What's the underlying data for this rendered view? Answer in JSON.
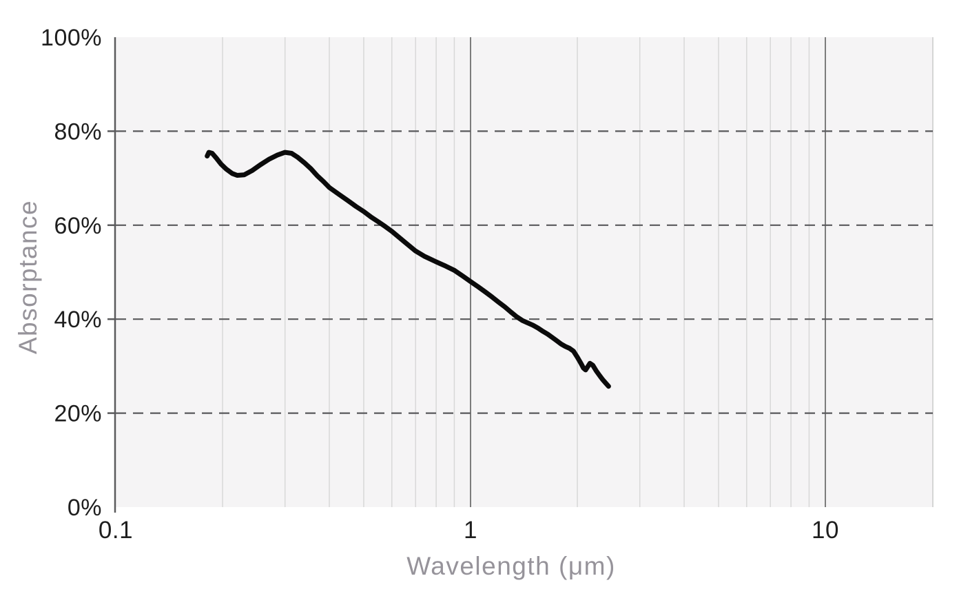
{
  "chart": {
    "x_axis_title": "Wavelength (μm)",
    "y_axis_title": "Absorptance"
  },
  "chart_data": {
    "type": "line",
    "title": "",
    "xlabel": "Wavelength (μm)",
    "ylabel": "Absorptance",
    "x_scale": "log",
    "xlim": [
      0.1,
      20
    ],
    "ylim": [
      0,
      100
    ],
    "y_unit": "percent",
    "legend": "none",
    "grid": {
      "x_minor": [
        0.2,
        0.3,
        0.4,
        0.5,
        0.6,
        0.7,
        0.8,
        0.9,
        2,
        3,
        4,
        5,
        6,
        7,
        8,
        9
      ],
      "x_major": [
        1,
        10
      ],
      "y_dashed": [
        20,
        40,
        60,
        80
      ]
    },
    "x_ticks": [
      {
        "value": 0.1,
        "label": "0.1"
      },
      {
        "value": 1,
        "label": "1"
      },
      {
        "value": 10,
        "label": "10"
      }
    ],
    "y_ticks": [
      {
        "value": 0,
        "label": "0%"
      },
      {
        "value": 20,
        "label": "20%"
      },
      {
        "value": 40,
        "label": "40%"
      },
      {
        "value": 60,
        "label": "60%"
      },
      {
        "value": 80,
        "label": "80%"
      },
      {
        "value": 100,
        "label": "100%"
      }
    ],
    "series": [
      {
        "name": "Absorptance",
        "color": "#0b0b0b",
        "points": [
          [
            0.181,
            74.7
          ],
          [
            0.183,
            75.5
          ],
          [
            0.187,
            75.3
          ],
          [
            0.192,
            74.3
          ],
          [
            0.198,
            73.0
          ],
          [
            0.205,
            71.9
          ],
          [
            0.213,
            71.0
          ],
          [
            0.22,
            70.6
          ],
          [
            0.23,
            70.7
          ],
          [
            0.242,
            71.6
          ],
          [
            0.255,
            72.8
          ],
          [
            0.27,
            74.0
          ],
          [
            0.285,
            74.9
          ],
          [
            0.3,
            75.5
          ],
          [
            0.313,
            75.3
          ],
          [
            0.325,
            74.5
          ],
          [
            0.34,
            73.3
          ],
          [
            0.355,
            72.0
          ],
          [
            0.37,
            70.5
          ],
          [
            0.385,
            69.3
          ],
          [
            0.4,
            68.0
          ],
          [
            0.425,
            66.6
          ],
          [
            0.45,
            65.3
          ],
          [
            0.475,
            64.0
          ],
          [
            0.5,
            62.9
          ],
          [
            0.525,
            61.7
          ],
          [
            0.55,
            60.7
          ],
          [
            0.575,
            59.7
          ],
          [
            0.6,
            58.7
          ],
          [
            0.65,
            56.5
          ],
          [
            0.7,
            54.5
          ],
          [
            0.74,
            53.4
          ],
          [
            0.77,
            52.8
          ],
          [
            0.8,
            52.2
          ],
          [
            0.85,
            51.3
          ],
          [
            0.9,
            50.4
          ],
          [
            0.95,
            49.2
          ],
          [
            1.0,
            48.0
          ],
          [
            1.05,
            46.9
          ],
          [
            1.1,
            45.8
          ],
          [
            1.15,
            44.7
          ],
          [
            1.2,
            43.6
          ],
          [
            1.25,
            42.6
          ],
          [
            1.3,
            41.5
          ],
          [
            1.35,
            40.5
          ],
          [
            1.4,
            39.7
          ],
          [
            1.45,
            39.2
          ],
          [
            1.5,
            38.7
          ],
          [
            1.55,
            38.1
          ],
          [
            1.6,
            37.4
          ],
          [
            1.65,
            36.8
          ],
          [
            1.7,
            36.1
          ],
          [
            1.75,
            35.4
          ],
          [
            1.8,
            34.7
          ],
          [
            1.85,
            34.2
          ],
          [
            1.9,
            33.8
          ],
          [
            1.95,
            33.2
          ],
          [
            2.0,
            31.9
          ],
          [
            2.05,
            30.5
          ],
          [
            2.08,
            29.6
          ],
          [
            2.11,
            29.2
          ],
          [
            2.14,
            29.9
          ],
          [
            2.17,
            30.6
          ],
          [
            2.21,
            30.2
          ],
          [
            2.26,
            29.0
          ],
          [
            2.31,
            28.0
          ],
          [
            2.36,
            27.1
          ],
          [
            2.41,
            26.3
          ],
          [
            2.45,
            25.7
          ]
        ]
      }
    ],
    "colors": {
      "page_background": "#ffffff",
      "plot_background": "#f5f4f5",
      "minor_grid": "#d8d8d8",
      "major_grid": "#7c7c7c",
      "right_border": "#c9c9c9",
      "axis_line": "#5a5a5c",
      "dashed_line": "#58585b",
      "tick_label": "#1e1e1e",
      "axis_title": "#96939a",
      "curve": "#0b0b0b"
    }
  }
}
